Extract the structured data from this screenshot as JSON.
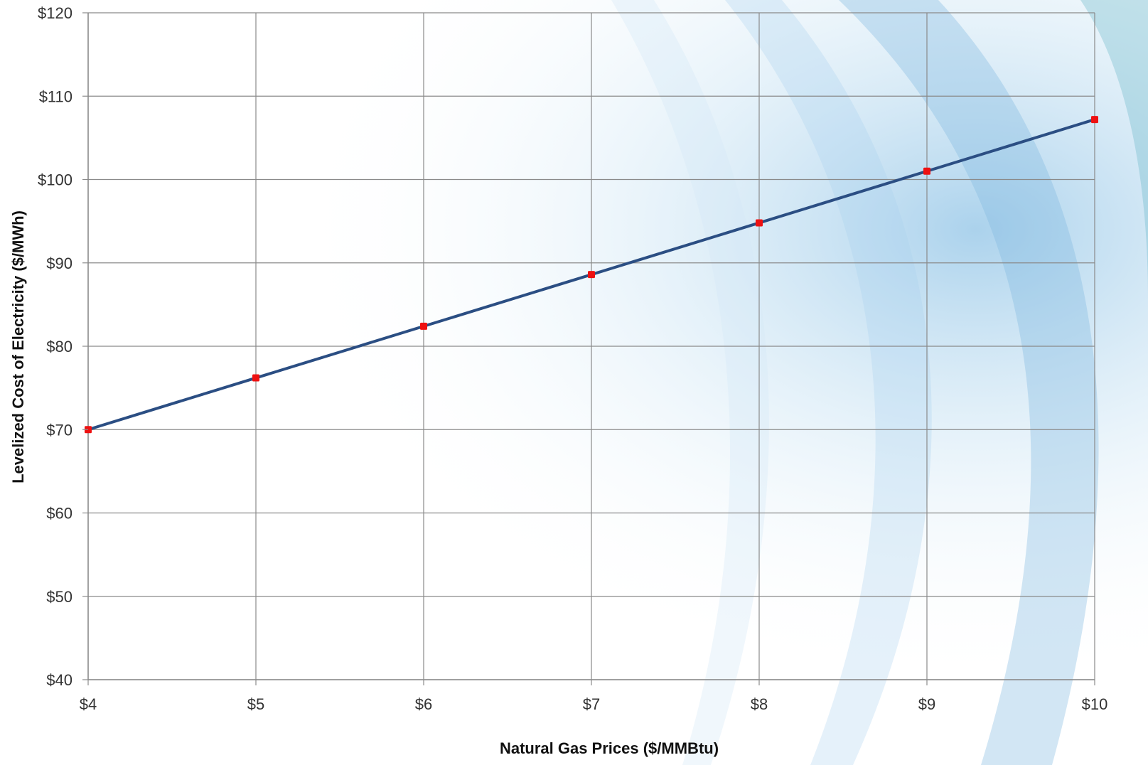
{
  "chart_data": {
    "type": "line",
    "title": "",
    "xlabel": "Natural Gas Prices ($/MMBtu)",
    "ylabel": "Levelized Cost of Electricity ($/MWh)",
    "x": [
      4,
      5,
      6,
      7,
      8,
      9,
      10
    ],
    "x_tick_labels": [
      "$4",
      "$5",
      "$6",
      "$7",
      "$8",
      "$9",
      "$10"
    ],
    "y_tick_labels": [
      "$40",
      "$50",
      "$60",
      "$70",
      "$80",
      "$90",
      "$100",
      "$110",
      "$120"
    ],
    "xlim": [
      4,
      10
    ],
    "ylim": [
      40,
      120
    ],
    "grid": true,
    "legend": "none",
    "series": [
      {
        "values": [
          70.0,
          76.2,
          82.4,
          88.6,
          94.8,
          101.0,
          107.2
        ],
        "line_color": "#2b4e83",
        "marker_color": "#ee1111"
      }
    ]
  }
}
